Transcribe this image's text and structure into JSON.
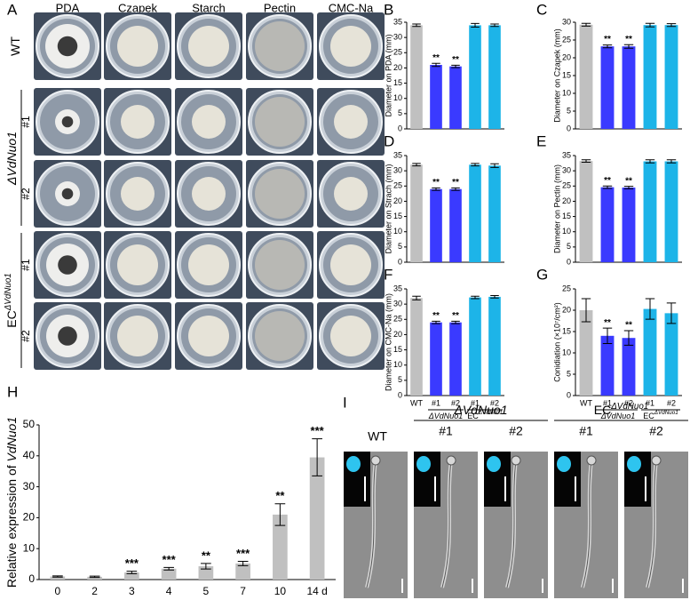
{
  "panel_labels": [
    "A",
    "B",
    "C",
    "D",
    "E",
    "F",
    "G",
    "H",
    "I"
  ],
  "plates": {
    "columns": [
      "PDA",
      "Czapek",
      "Starch",
      "Pectin",
      "CMC-Na"
    ],
    "groups": [
      {
        "label": "WT"
      },
      {
        "label": "ΔVdNuo1",
        "rows": [
          "#1",
          "#2"
        ]
      },
      {
        "label": "EC",
        "superscript": "ΔVdNuo1",
        "rows": [
          "#1",
          "#2"
        ]
      }
    ]
  },
  "chart_data": [
    {
      "type": "bar",
      "ylabel": "Diameter on PDA (mm)",
      "values": [
        34,
        21,
        20.5,
        34,
        34
      ],
      "errors": [
        0.4,
        0.5,
        0.4,
        0.6,
        0.4
      ],
      "annotations": [
        null,
        "**",
        "**",
        null,
        null
      ],
      "colors": [
        "#c0c0c0",
        "#3a3aff",
        "#3a3aff",
        "#1db4e8",
        "#1db4e8"
      ],
      "ylim": [
        0,
        35
      ],
      "yticks": [
        0,
        5,
        10,
        15,
        20,
        25,
        30,
        35
      ]
    },
    {
      "type": "bar",
      "ylabel": "Diameter on Czapek (mm)",
      "values": [
        29.3,
        23.2,
        23.2,
        29.2,
        29.2
      ],
      "errors": [
        0.4,
        0.4,
        0.5,
        0.5,
        0.4
      ],
      "annotations": [
        null,
        "**",
        "**",
        null,
        null
      ],
      "colors": [
        "#c0c0c0",
        "#3a3aff",
        "#3a3aff",
        "#1db4e8",
        "#1db4e8"
      ],
      "ylim": [
        0,
        30
      ],
      "yticks": [
        0,
        5,
        10,
        15,
        20,
        25,
        30
      ]
    },
    {
      "type": "bar",
      "ylabel": "Diameter on Strach (mm)",
      "values": [
        32,
        24,
        24,
        32,
        31.7
      ],
      "errors": [
        0.4,
        0.4,
        0.4,
        0.4,
        0.6
      ],
      "annotations": [
        null,
        "**",
        "**",
        null,
        null
      ],
      "colors": [
        "#c0c0c0",
        "#3a3aff",
        "#3a3aff",
        "#1db4e8",
        "#1db4e8"
      ],
      "ylim": [
        0,
        35
      ],
      "yticks": [
        0,
        5,
        10,
        15,
        20,
        25,
        30,
        35
      ]
    },
    {
      "type": "bar",
      "ylabel": "Diameter on Pectin (mm)",
      "values": [
        33.2,
        24.6,
        24.5,
        33.1,
        33.1
      ],
      "errors": [
        0.4,
        0.4,
        0.4,
        0.5,
        0.5
      ],
      "annotations": [
        null,
        "**",
        "**",
        null,
        null
      ],
      "colors": [
        "#c0c0c0",
        "#3a3aff",
        "#3a3aff",
        "#1db4e8",
        "#1db4e8"
      ],
      "ylim": [
        0,
        35
      ],
      "yticks": [
        0,
        5,
        10,
        15,
        20,
        25,
        30,
        35
      ]
    },
    {
      "type": "bar",
      "ylabel": "Diameter on CMC-Na (mm)",
      "categories": [
        "WT",
        "#1",
        "#2",
        "#1",
        "#2"
      ],
      "groups": [
        {
          "label": "ΔVdNuo1"
        },
        {
          "label": "EC",
          "superscript": "ΔVdNuo1"
        }
      ],
      "values": [
        32,
        24,
        24,
        32.2,
        32.4
      ],
      "errors": [
        0.6,
        0.4,
        0.4,
        0.4,
        0.4
      ],
      "annotations": [
        null,
        "**",
        "**",
        null,
        null
      ],
      "colors": [
        "#c0c0c0",
        "#3a3aff",
        "#3a3aff",
        "#1db4e8",
        "#1db4e8"
      ],
      "ylim": [
        0,
        35
      ],
      "yticks": [
        0,
        5,
        10,
        15,
        20,
        25,
        30,
        35
      ]
    },
    {
      "type": "bar",
      "ylabel": "Conidiation (×10⁷/cm²)",
      "categories": [
        "WT",
        "#1",
        "#2",
        "#1",
        "#2"
      ],
      "groups": [
        {
          "label": "ΔVdNuo1"
        },
        {
          "label": "EC",
          "superscript": "ΔVdNuo1"
        }
      ],
      "values": [
        20,
        14,
        13.5,
        20.3,
        19.3
      ],
      "errors": [
        2.7,
        1.8,
        1.7,
        2.4,
        2.4
      ],
      "annotations": [
        null,
        "**",
        "**",
        null,
        null
      ],
      "colors": [
        "#c0c0c0",
        "#3a3aff",
        "#3a3aff",
        "#1db4e8",
        "#1db4e8"
      ],
      "ylim": [
        0,
        25
      ],
      "yticks": [
        0,
        5,
        10,
        15,
        20,
        25
      ]
    },
    {
      "type": "bar",
      "ylabel_parts": [
        "Relative expression of ",
        "VdNuo1"
      ],
      "categories": [
        "0",
        "2",
        "3",
        "4",
        "5",
        "7",
        "10",
        "14 d"
      ],
      "values": [
        1,
        0.9,
        2.3,
        3.5,
        4.3,
        5.2,
        21,
        39.5
      ],
      "errors": [
        0.2,
        0.2,
        0.4,
        0.4,
        0.9,
        0.7,
        3.5,
        6
      ],
      "annotations": [
        null,
        null,
        "***",
        "***",
        "**",
        "***",
        "**",
        "***"
      ],
      "colors": [
        "#c0c0c0",
        "#c0c0c0",
        "#c0c0c0",
        "#c0c0c0",
        "#c0c0c0",
        "#c0c0c0",
        "#c0c0c0",
        "#c0c0c0"
      ],
      "ylim": [
        0,
        50
      ],
      "yticks": [
        0,
        10,
        20,
        30,
        40,
        50
      ]
    }
  ],
  "micrographs": {
    "wt": "WT",
    "groups": [
      {
        "label": "ΔVdNuo1",
        "rows": [
          "#1",
          "#2"
        ]
      },
      {
        "label": "EC",
        "superscript": "ΔVdNuo1",
        "rows": [
          "#1",
          "#2"
        ]
      }
    ]
  }
}
